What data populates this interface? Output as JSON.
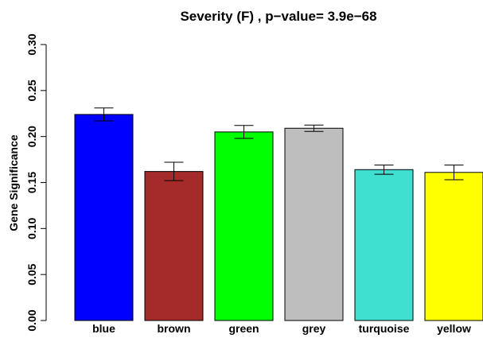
{
  "chart_data": {
    "type": "bar",
    "title": "Severity (F) , p−value= 3.9e−68",
    "ylabel": "Gene Significance",
    "categories": [
      "blue",
      "brown",
      "green",
      "grey",
      "turquoise",
      "yellow"
    ],
    "values": [
      0.224,
      0.162,
      0.205,
      0.209,
      0.164,
      0.161
    ],
    "errors": [
      0.007,
      0.01,
      0.007,
      0.0035,
      0.005,
      0.008
    ],
    "colors": [
      "#0000ff",
      "#a52a2a",
      "#00ff00",
      "#bebebe",
      "#40e0d0",
      "#ffff00"
    ],
    "ylim": [
      0,
      0.3
    ],
    "yticks": [
      {
        "value": 0,
        "label": "0.00"
      },
      0.05,
      {
        "value": 0.1,
        "label": "0.10"
      },
      0.15,
      {
        "value": 0.2,
        "label": "0.20"
      },
      0.25,
      {
        "value": 0.3,
        "label": "0.30"
      }
    ]
  }
}
